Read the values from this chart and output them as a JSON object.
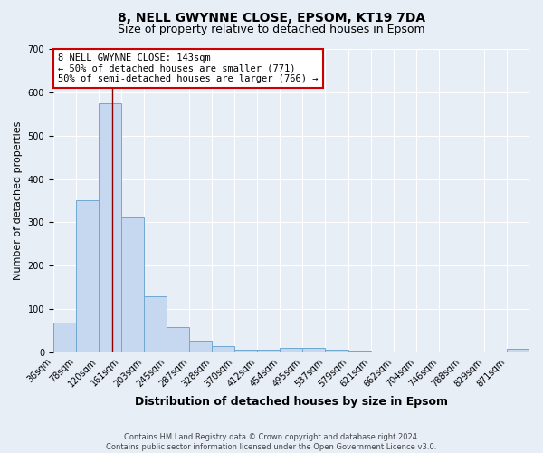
{
  "title1": "8, NELL GWYNNE CLOSE, EPSOM, KT19 7DA",
  "title2": "Size of property relative to detached houses in Epsom",
  "xlabel": "Distribution of detached houses by size in Epsom",
  "ylabel": "Number of detached properties",
  "bin_labels": [
    "36sqm",
    "78sqm",
    "120sqm",
    "161sqm",
    "203sqm",
    "245sqm",
    "287sqm",
    "328sqm",
    "370sqm",
    "412sqm",
    "454sqm",
    "495sqm",
    "537sqm",
    "579sqm",
    "621sqm",
    "662sqm",
    "704sqm",
    "746sqm",
    "788sqm",
    "829sqm",
    "871sqm"
  ],
  "bar_values": [
    68,
    350,
    575,
    312,
    130,
    58,
    27,
    15,
    7,
    7,
    10,
    10,
    7,
    5,
    2,
    1,
    1,
    0,
    1,
    0,
    8
  ],
  "bar_color": "#c5d8ef",
  "bar_edge_color": "#6fa8d0",
  "background_color": "#e8eef6",
  "grid_color": "#ffffff",
  "red_line_bin_index": 2.595,
  "annotation_line1": "8 NELL GWYNNE CLOSE: 143sqm",
  "annotation_line2": "← 50% of detached houses are smaller (771)",
  "annotation_line3": "50% of semi-detached houses are larger (766) →",
  "annotation_box_color": "#ffffff",
  "annotation_border_color": "#cc0000",
  "ylim": [
    0,
    700
  ],
  "yticks": [
    0,
    100,
    200,
    300,
    400,
    500,
    600,
    700
  ],
  "footer": "Contains HM Land Registry data © Crown copyright and database right 2024.\nContains public sector information licensed under the Open Government Licence v3.0.",
  "title1_fontsize": 10,
  "title2_fontsize": 9,
  "xlabel_fontsize": 9,
  "ylabel_fontsize": 8,
  "tick_fontsize": 7,
  "footer_fontsize": 6,
  "annotation_fontsize": 7.5
}
